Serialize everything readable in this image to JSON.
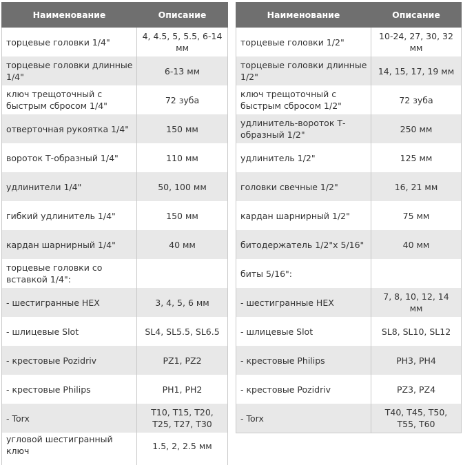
{
  "left_table": {
    "headers": {
      "name": "Наименование",
      "desc": "Описание"
    },
    "rows": [
      {
        "name": "торцевые головки 1/4\"",
        "desc": "4, 4.5, 5, 5.5, 6-14 мм"
      },
      {
        "name": "торцевые головки длинные 1/4\"",
        "desc": "6-13 мм"
      },
      {
        "name": "ключ трещоточный с быстрым сбросом 1/4\"",
        "desc": "72 зуба"
      },
      {
        "name": "отверточная рукоятка 1/4\"",
        "desc": "150 мм"
      },
      {
        "name": "вороток Т-образный 1/4\"",
        "desc": "110 мм"
      },
      {
        "name": "удлинители 1/4\"",
        "desc": "50, 100 мм"
      },
      {
        "name": "гибкий удлинитель 1/4\"",
        "desc": "150 мм"
      },
      {
        "name": "кардан шарнирный 1/4\"",
        "desc": "40 мм"
      },
      {
        "name": "торцевые головки со вставкой 1/4\":",
        "desc": ""
      },
      {
        "name": "- шестигранные HEX",
        "desc": "3, 4, 5, 6 мм"
      },
      {
        "name": "- шлицевые Slot",
        "desc": "SL4, SL5.5, SL6.5"
      },
      {
        "name": "- крестовые Pozidriv",
        "desc": "PZ1, PZ2"
      },
      {
        "name": "- крестовые Philips",
        "desc": "PH1, PH2"
      },
      {
        "name": "- Torx",
        "desc": "T10, T15, T20, T25, T27, T30"
      },
      {
        "name": "угловой шестигранный ключ",
        "desc": "1.5, 2, 2.5 мм"
      }
    ]
  },
  "right_table": {
    "headers": {
      "name": "Наименование",
      "desc": "Описание"
    },
    "rows": [
      {
        "name": "торцевые головки 1/2\"",
        "desc": "10-24, 27, 30, 32 мм"
      },
      {
        "name": "торцевые головки длинные 1/2\"",
        "desc": "14, 15, 17, 19 мм"
      },
      {
        "name": "ключ трещоточный с быстрым сбросом 1/2\"",
        "desc": "72 зуба"
      },
      {
        "name": "удлинитель-вороток Т-образный 1/2\"",
        "desc": "250 мм"
      },
      {
        "name": "удлинитель 1/2\"",
        "desc": "125 мм"
      },
      {
        "name": "головки свечные 1/2\"",
        "desc": "16, 21 мм"
      },
      {
        "name": "кардан шарнирный 1/2\"",
        "desc": "75 мм"
      },
      {
        "name": "битодержатель 1/2\"х 5/16\"",
        "desc": "40 мм"
      },
      {
        "name": "биты 5/16\":",
        "desc": ""
      },
      {
        "name": "- шестигранные HEX",
        "desc": "7, 8, 10, 12, 14 мм"
      },
      {
        "name": "- шлицевые Slot",
        "desc": "SL8, SL10, SL12"
      },
      {
        "name": "- крестовые Philips",
        "desc": "PH3, PH4"
      },
      {
        "name": "- крестовые Pozidriv",
        "desc": "PZ3, PZ4"
      },
      {
        "name": "- Torx",
        "desc": "T40, T45, T50, T55, T60"
      }
    ]
  }
}
